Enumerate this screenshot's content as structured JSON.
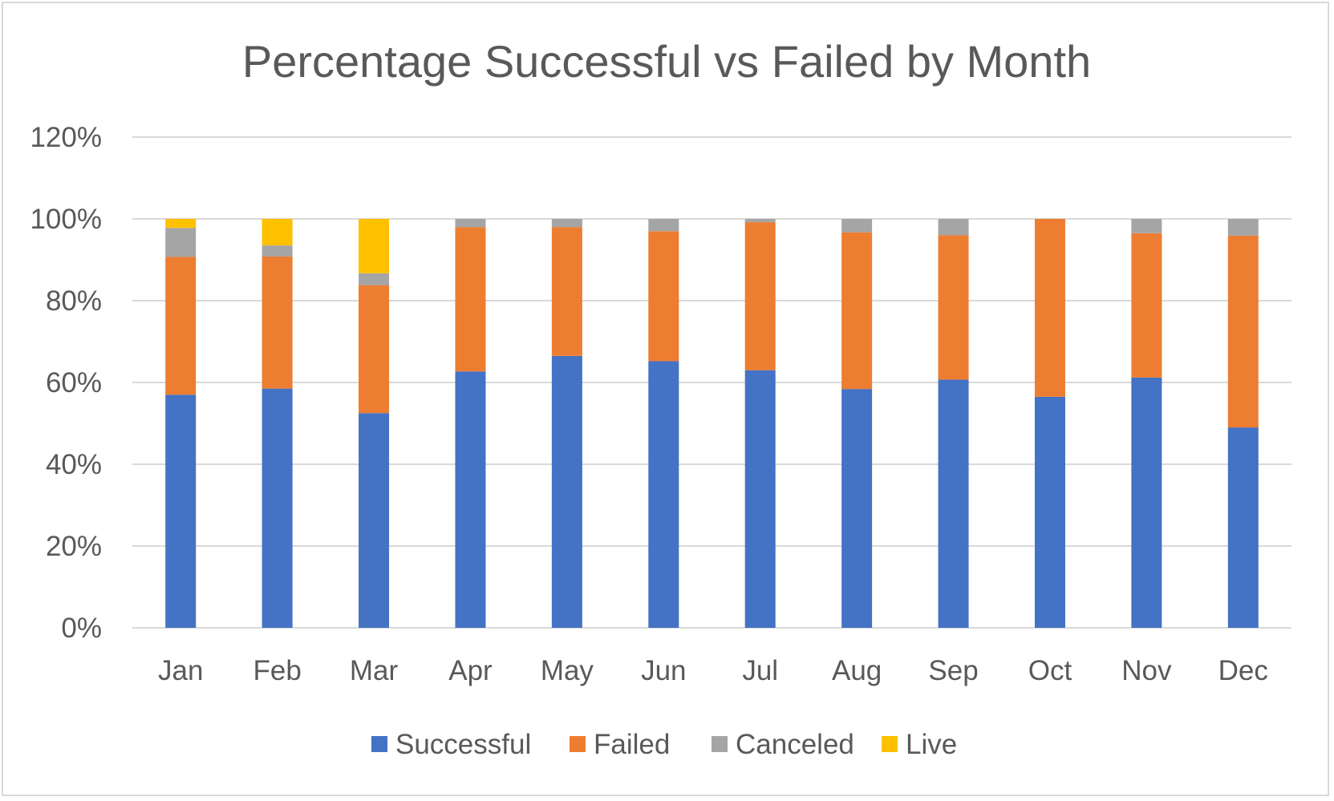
{
  "chart_data": {
    "type": "bar",
    "stacked": true,
    "title": "Percentage Successful vs Failed by Month",
    "xlabel": "",
    "ylabel": "",
    "ylim": [
      0,
      1.2
    ],
    "y_ticks": [
      "0%",
      "20%",
      "40%",
      "60%",
      "80%",
      "100%",
      "120%"
    ],
    "categories": [
      "Jan",
      "Feb",
      "Mar",
      "Apr",
      "May",
      "Jun",
      "Jul",
      "Aug",
      "Sep",
      "Oct",
      "Nov",
      "Dec"
    ],
    "series": [
      {
        "name": "Successful",
        "color": "#4472c4",
        "values": [
          0.57,
          0.585,
          0.525,
          0.627,
          0.665,
          0.652,
          0.63,
          0.584,
          0.607,
          0.565,
          0.612,
          0.49
        ]
      },
      {
        "name": "Failed",
        "color": "#ed7d31",
        "values": [
          0.337,
          0.323,
          0.313,
          0.353,
          0.315,
          0.318,
          0.362,
          0.383,
          0.353,
          0.435,
          0.353,
          0.469
        ]
      },
      {
        "name": "Canceled",
        "color": "#a5a5a5",
        "values": [
          0.071,
          0.027,
          0.029,
          0.02,
          0.02,
          0.03,
          0.008,
          0.033,
          0.04,
          0.0,
          0.035,
          0.041
        ]
      },
      {
        "name": "Live",
        "color": "#ffc000",
        "values": [
          0.022,
          0.065,
          0.133,
          0.0,
          0.0,
          0.0,
          0.0,
          0.0,
          0.0,
          0.0,
          0.0,
          0.0
        ]
      }
    ],
    "grid": true,
    "legend_position": "bottom"
  }
}
